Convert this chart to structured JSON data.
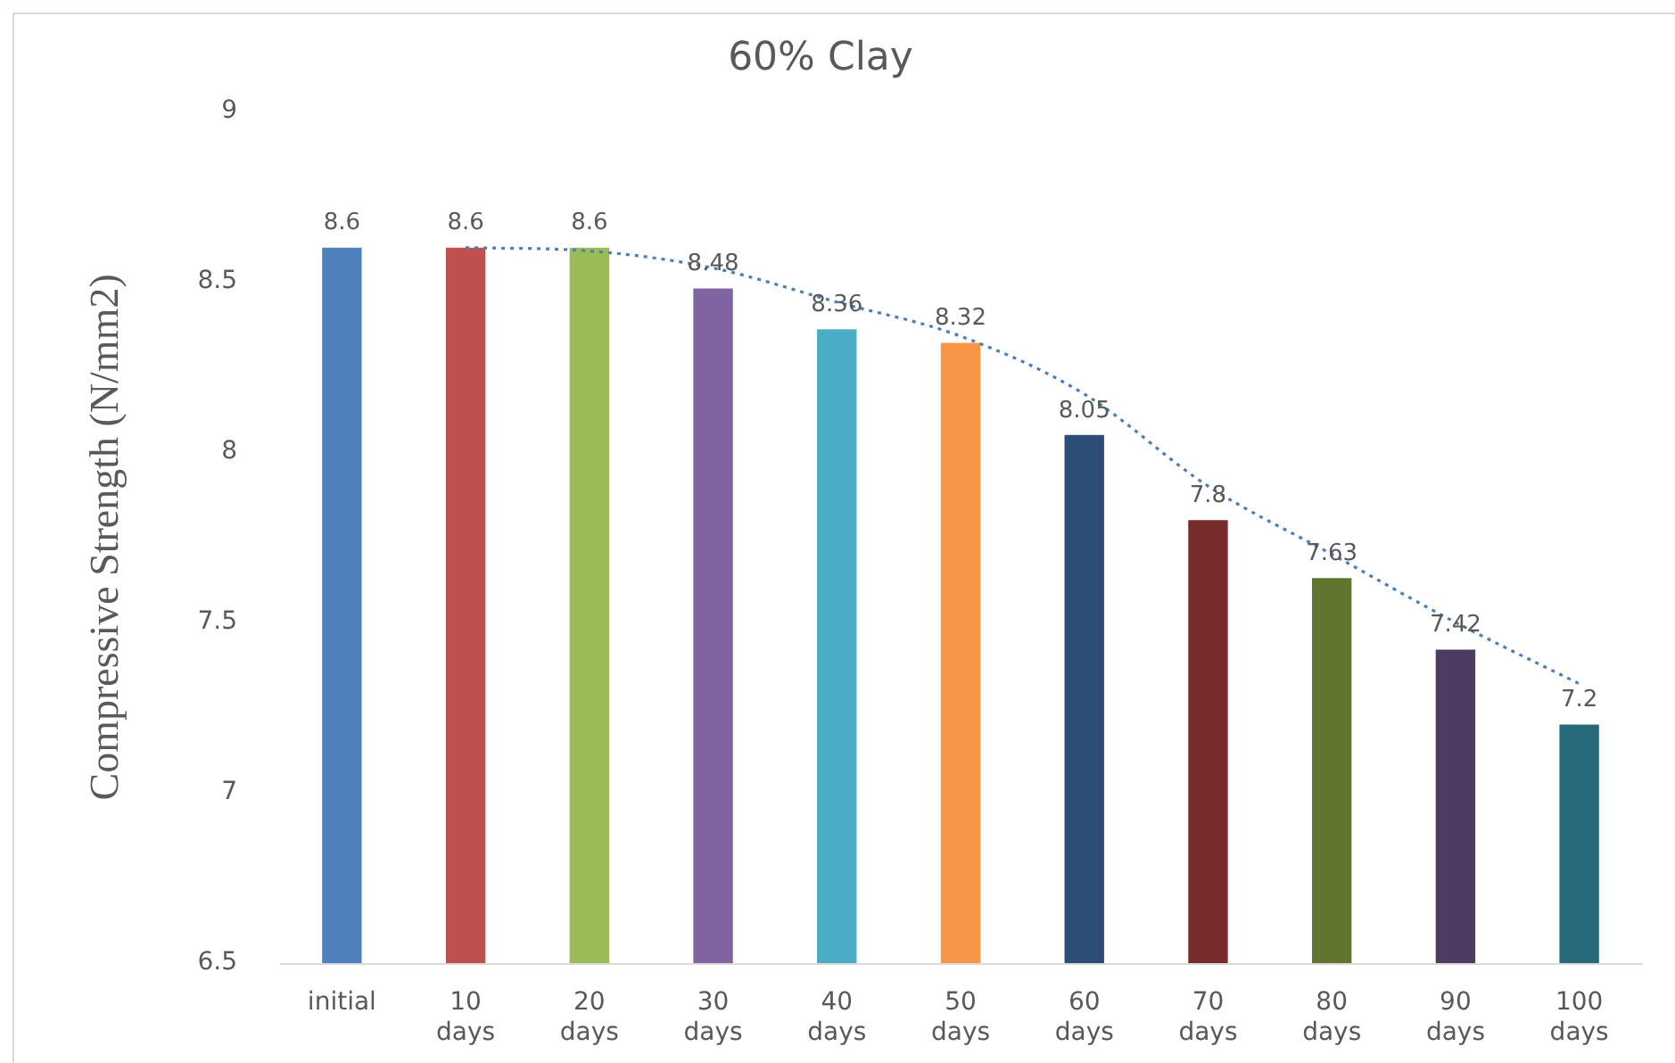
{
  "chart_data": {
    "type": "bar",
    "title": "60% Clay",
    "ylabel": "Compressive Strength (N/mm2)",
    "categories": [
      "initial",
      "10 days",
      "20 days",
      "30 days",
      "40 days",
      "50 days",
      "60 days",
      "70 days",
      "80 days",
      "90 days",
      "100 days"
    ],
    "series": [
      {
        "values": [
          8.6,
          8.6,
          8.6,
          8.48,
          8.36,
          8.32,
          8.05,
          7.8,
          7.63,
          7.42,
          7.2
        ],
        "value_labels": [
          "8.6",
          "8.6",
          "8.6",
          "8.48",
          "8.36",
          "8.32",
          "8.05",
          "7.8",
          "7.63",
          "7.42",
          "7.2"
        ],
        "colors": [
          "#4f81bd",
          "#c0504d",
          "#9bbb59",
          "#8064a2",
          "#4bacc6",
          "#f79646",
          "#2c4d75",
          "#772c2a",
          "#5f7530",
          "#4d3b62",
          "#276a7c"
        ]
      },
      {
        "type": "line",
        "x": [
          "10 days",
          "20 days",
          "30 days",
          "40 days",
          "50 days",
          "60 days",
          "70 days",
          "80 days",
          "90 days",
          "100 days"
        ],
        "values": [
          8.6,
          8.59,
          8.54,
          8.44,
          8.34,
          8.17,
          7.9,
          7.7,
          7.5,
          7.32
        ],
        "color": "#4a7ebb",
        "line_style": "dotted"
      }
    ],
    "ylim": [
      6.5,
      9
    ],
    "yticks": [
      6.5,
      7,
      7.5,
      8,
      8.5,
      9
    ],
    "grid": false,
    "legend": false
  }
}
